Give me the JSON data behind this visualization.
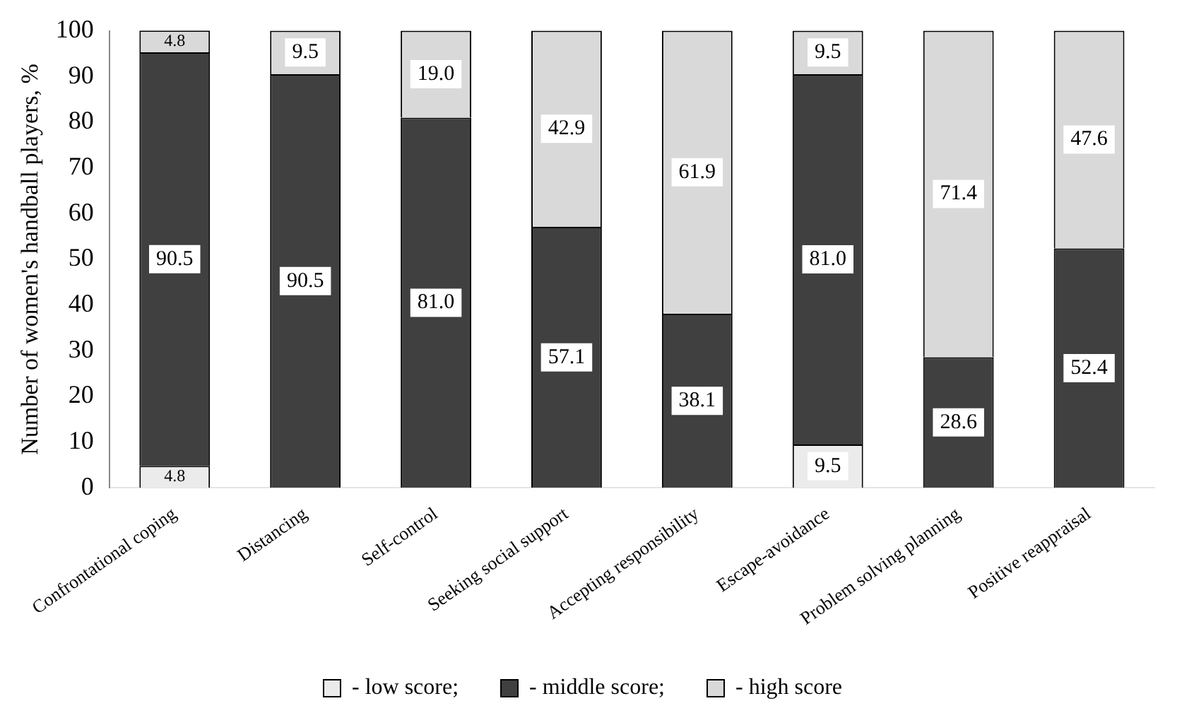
{
  "chart_data": {
    "type": "bar",
    "stacked": true,
    "ylabel": "Number of women's handball players, %",
    "categories": [
      "Confrontational coping",
      "Distancing",
      "Self-control",
      "Seeking social support",
      "Accepting responsibility",
      "Escape-avoidance",
      "Problem solving planning",
      "Positive reappraisal"
    ],
    "series": [
      {
        "name": "- low score;",
        "color": "#ebebeb",
        "values": [
          4.8,
          0,
          0,
          0,
          0,
          9.5,
          0,
          0
        ],
        "value_labels": [
          "4.8",
          null,
          null,
          null,
          null,
          "9.5",
          null,
          null
        ]
      },
      {
        "name": "- middle score;",
        "color": "#404040",
        "values": [
          90.5,
          90.5,
          81.0,
          57.1,
          38.1,
          81.0,
          28.6,
          52.4
        ],
        "value_labels": [
          "90.5",
          "90.5",
          "81.0",
          "57.1",
          "38.1",
          "81.0",
          "28.6",
          "52.4"
        ]
      },
      {
        "name": "- high score",
        "color": "#d9d9d9",
        "values": [
          4.8,
          9.5,
          19.0,
          42.9,
          61.9,
          9.5,
          71.4,
          47.6
        ],
        "value_labels": [
          "4.8",
          "9.5",
          "19.0",
          "42.9",
          "61.9",
          "9.5",
          "71.4",
          "47.6"
        ]
      }
    ],
    "ylim": [
      0,
      100
    ],
    "yticks": [
      0,
      10,
      20,
      30,
      40,
      50,
      60,
      70,
      80,
      90,
      100
    ],
    "grid": false,
    "legend": "bottom"
  }
}
